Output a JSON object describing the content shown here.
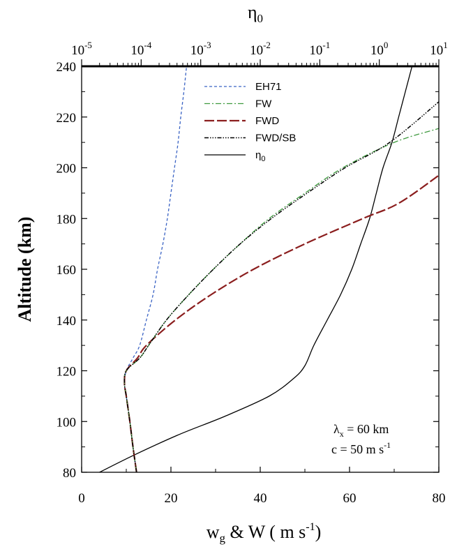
{
  "chart_data": {
    "type": "line",
    "xlabel": "w",
    "xlabel_sub": "g",
    "xlabel_rest": " & W ( m s",
    "xlabel_sup": "-1",
    "xlabel_end": ")",
    "ylabel": "Altitude (km)",
    "top_xlabel": "η",
    "top_xlabel_sub": "0",
    "xlim": [
      0,
      80
    ],
    "ylim": [
      80,
      240
    ],
    "x_ticks": [
      "0",
      "20",
      "40",
      "60",
      "80"
    ],
    "y_ticks": [
      "80",
      "100",
      "120",
      "140",
      "160",
      "180",
      "200",
      "220",
      "240"
    ],
    "top_axis_scale": "log",
    "top_axis_range": [
      1e-05,
      10
    ],
    "top_ticks": [
      {
        "base": "10",
        "exp": "-5"
      },
      {
        "base": "10",
        "exp": "-4"
      },
      {
        "base": "10",
        "exp": "-3"
      },
      {
        "base": "10",
        "exp": "-2"
      },
      {
        "base": "10",
        "exp": "-1"
      },
      {
        "base": "10",
        "exp": "0"
      },
      {
        "base": "10",
        "exp": "1"
      }
    ],
    "legend_position": "top-center",
    "annotations": [
      {
        "text": "λ",
        "sub": "x",
        "rest": " = 60 km"
      },
      {
        "text": "c = 50 m s",
        "sup": "-1"
      }
    ],
    "series": [
      {
        "name": "EH71",
        "color": "#3a63c4",
        "dash": "4,3",
        "axis": "bottom",
        "points": [
          [
            12.3,
            80
          ],
          [
            11.5,
            90
          ],
          [
            10.8,
            100
          ],
          [
            10.0,
            110
          ],
          [
            9.6,
            115
          ],
          [
            10.0,
            120
          ],
          [
            11.5,
            125
          ],
          [
            13.0,
            130
          ],
          [
            14.5,
            140
          ],
          [
            16.0,
            150
          ],
          [
            17.0,
            160
          ],
          [
            18.2,
            170
          ],
          [
            19.2,
            180
          ],
          [
            20.0,
            190
          ],
          [
            20.8,
            200
          ],
          [
            21.6,
            210
          ],
          [
            22.2,
            220
          ],
          [
            22.9,
            230
          ],
          [
            23.5,
            240
          ]
        ]
      },
      {
        "name": "FW",
        "color": "#3f9a3f",
        "dash": "8,3,2,3",
        "axis": "bottom",
        "points": [
          [
            12.3,
            80
          ],
          [
            11.5,
            90
          ],
          [
            10.8,
            100
          ],
          [
            10.0,
            110
          ],
          [
            9.6,
            115
          ],
          [
            10.0,
            120
          ],
          [
            13.0,
            125
          ],
          [
            15.0,
            130
          ],
          [
            19.0,
            140
          ],
          [
            24.0,
            150
          ],
          [
            29.5,
            160
          ],
          [
            35.5,
            170
          ],
          [
            42.0,
            180
          ],
          [
            50.0,
            190
          ],
          [
            58.5,
            200
          ],
          [
            70.0,
            210
          ],
          [
            80.0,
            215.5
          ]
        ]
      },
      {
        "name": "FWD",
        "color": "#8b1e1e",
        "dash": "14,4",
        "axis": "bottom",
        "points": [
          [
            12.3,
            80
          ],
          [
            11.5,
            90
          ],
          [
            10.8,
            100
          ],
          [
            10.0,
            110
          ],
          [
            9.6,
            115
          ],
          [
            10.0,
            120
          ],
          [
            12.5,
            125
          ],
          [
            14.5,
            130
          ],
          [
            21.0,
            140
          ],
          [
            29.0,
            150
          ],
          [
            38.5,
            160
          ],
          [
            50.0,
            170
          ],
          [
            63.0,
            180
          ],
          [
            71.0,
            186
          ],
          [
            80.0,
            197
          ]
        ]
      },
      {
        "name": "FWD/SB",
        "color": "#000000",
        "dash": "6,2,1.5,2,1.5,2,1.5,2",
        "axis": "bottom",
        "points": [
          [
            12.3,
            80
          ],
          [
            11.5,
            90
          ],
          [
            10.8,
            100
          ],
          [
            10.0,
            110
          ],
          [
            9.6,
            115
          ],
          [
            10.0,
            120
          ],
          [
            13.0,
            125
          ],
          [
            15.0,
            130
          ],
          [
            19.0,
            140
          ],
          [
            24.0,
            150
          ],
          [
            29.5,
            160
          ],
          [
            35.5,
            170
          ],
          [
            42.5,
            180
          ],
          [
            50.5,
            190
          ],
          [
            59.0,
            200
          ],
          [
            69.0,
            210
          ],
          [
            80.0,
            226
          ]
        ]
      },
      {
        "name": "η",
        "name_sub": "0",
        "color": "#000000",
        "dash": "",
        "axis": "bottom",
        "points": [
          [
            4.0,
            80
          ],
          [
            12.0,
            87
          ],
          [
            22.0,
            95
          ],
          [
            32.0,
            102
          ],
          [
            42.0,
            110
          ],
          [
            47.5,
            117
          ],
          [
            50.0,
            122
          ],
          [
            52.0,
            130
          ],
          [
            55.0,
            140
          ],
          [
            58.0,
            150
          ],
          [
            60.5,
            160
          ],
          [
            62.5,
            170
          ],
          [
            64.5,
            180
          ],
          [
            66.0,
            190
          ],
          [
            67.5,
            200
          ],
          [
            69.5,
            210
          ],
          [
            71.0,
            220
          ],
          [
            72.5,
            230
          ],
          [
            74.0,
            240
          ]
        ]
      }
    ]
  }
}
